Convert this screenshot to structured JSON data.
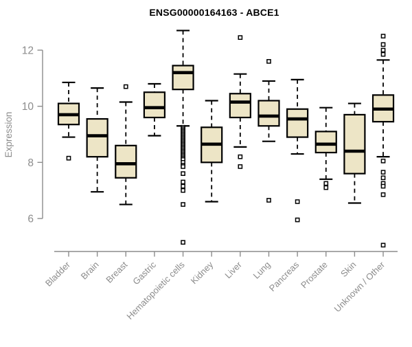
{
  "page": {
    "title": "ENSG00000164163 - ABCE1"
  },
  "chart_data": {
    "type": "boxplot",
    "title": "ENSG00000164163 - ABCE1",
    "xlabel": "",
    "ylabel": "Expression",
    "yticks": [
      6,
      8,
      10,
      12
    ],
    "ylim": [
      4.9,
      12.9
    ],
    "grid": false,
    "legend": "none",
    "colors": {
      "box_fill": "#ede5c6",
      "box_border": "#000000",
      "axis": "#8c8c8c",
      "tick_text": "#8c8c8c",
      "title_text": "#000000",
      "background": "#ffffff"
    },
    "categories": [
      "Bladder",
      "Brain",
      "Breast",
      "Gastric",
      "Hematopoietic cells",
      "Kidney",
      "Liver",
      "Lung",
      "Pancreas",
      "Prostate",
      "Skin",
      "Unknown / Other"
    ],
    "boxes": [
      {
        "category": "Bladder",
        "whisker_low": 8.9,
        "q1": 9.35,
        "median": 9.7,
        "q3": 10.1,
        "whisker_high": 10.85,
        "outliers": [
          8.15
        ]
      },
      {
        "category": "Brain",
        "whisker_low": 6.95,
        "q1": 8.2,
        "median": 8.95,
        "q3": 9.55,
        "whisker_high": 10.65,
        "outliers": []
      },
      {
        "category": "Breast",
        "whisker_low": 6.5,
        "q1": 7.45,
        "median": 7.95,
        "q3": 8.6,
        "whisker_high": 10.15,
        "outliers": [
          10.7
        ]
      },
      {
        "category": "Gastric",
        "whisker_low": 8.95,
        "q1": 9.6,
        "median": 9.95,
        "q3": 10.5,
        "whisker_high": 10.8,
        "outliers": []
      },
      {
        "category": "Hematopoietic cells",
        "whisker_low": 9.3,
        "q1": 10.6,
        "median": 11.2,
        "q3": 11.45,
        "whisker_high": 12.7,
        "outliers": [
          9.25,
          9.2,
          9.15,
          9.1,
          9.05,
          9.0,
          8.95,
          8.9,
          8.85,
          8.8,
          8.75,
          8.7,
          8.65,
          8.6,
          8.55,
          8.5,
          8.45,
          8.4,
          8.35,
          8.3,
          8.25,
          8.2,
          8.15,
          8.1,
          8.0,
          7.9,
          7.85,
          7.6,
          7.3,
          7.15,
          7.0,
          6.5,
          5.15
        ]
      },
      {
        "category": "Kidney",
        "whisker_low": 6.6,
        "q1": 8.0,
        "median": 8.65,
        "q3": 9.25,
        "whisker_high": 10.2,
        "outliers": []
      },
      {
        "category": "Liver",
        "whisker_low": 8.55,
        "q1": 9.6,
        "median": 10.15,
        "q3": 10.45,
        "whisker_high": 11.15,
        "outliers": [
          12.45,
          8.2,
          7.85
        ]
      },
      {
        "category": "Lung",
        "whisker_low": 8.75,
        "q1": 9.3,
        "median": 9.65,
        "q3": 10.2,
        "whisker_high": 10.9,
        "outliers": [
          11.6,
          6.65
        ]
      },
      {
        "category": "Pancreas",
        "whisker_low": 8.3,
        "q1": 8.9,
        "median": 9.55,
        "q3": 9.9,
        "whisker_high": 10.95,
        "outliers": [
          6.6,
          5.95
        ]
      },
      {
        "category": "Prostate",
        "whisker_low": 7.4,
        "q1": 8.35,
        "median": 8.65,
        "q3": 9.1,
        "whisker_high": 9.95,
        "outliers": [
          7.25,
          7.1
        ]
      },
      {
        "category": "Skin",
        "whisker_low": 6.55,
        "q1": 7.6,
        "median": 8.4,
        "q3": 9.7,
        "whisker_high": 10.1,
        "outliers": []
      },
      {
        "category": "Unknown / Other",
        "whisker_low": 8.2,
        "q1": 9.45,
        "median": 9.9,
        "q3": 10.4,
        "whisker_high": 11.65,
        "outliers": [
          12.5,
          12.2,
          12.0,
          11.85,
          8.05,
          7.65,
          7.45,
          7.25,
          7.15,
          6.85,
          5.05
        ]
      }
    ]
  }
}
